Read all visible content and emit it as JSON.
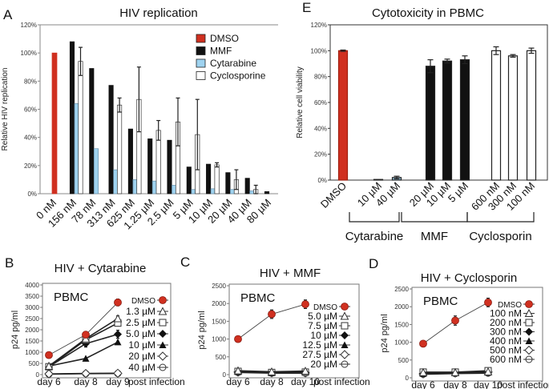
{
  "chart_data": [
    {
      "panel": "A",
      "type": "bar",
      "title": "HIV replication",
      "ylabel": "Relative HIV replication",
      "ylim": [
        0,
        120
      ],
      "yticks": [
        "0%",
        "20%",
        "40%",
        "60%",
        "80%",
        "100%",
        "120%"
      ],
      "categories": [
        "0 nM",
        "156 nM",
        "78 nM",
        "313 nM",
        "625 nM",
        "1.25 µM",
        "2.5 µM",
        "5 µM",
        "10 µM",
        "20 µM",
        "40 µM",
        "80 µM"
      ],
      "legend_position": "top-right",
      "series": [
        {
          "name": "DMSO",
          "color": "#d03020",
          "values": [
            100,
            null,
            null,
            null,
            null,
            null,
            null,
            null,
            null,
            null,
            null,
            null
          ],
          "errors": []
        },
        {
          "name": "MMF",
          "color": "#111111",
          "values": [
            null,
            108,
            89,
            77,
            46,
            39,
            38,
            19,
            21,
            15,
            11,
            1.5
          ],
          "errors": []
        },
        {
          "name": "Cytarabine",
          "color": "#9fd3f0",
          "values": [
            null,
            64,
            32,
            17,
            10,
            9,
            6,
            3,
            3.5,
            3,
            2,
            null
          ],
          "errors": []
        },
        {
          "name": "Cyclosporine",
          "color": "#ffffff",
          "values": [
            null,
            94,
            null,
            63,
            67,
            45,
            51,
            42,
            20.5,
            10,
            3,
            null
          ],
          "errors": [
            null,
            10,
            null,
            5,
            23,
            7,
            17,
            25,
            1.5,
            7,
            3,
            null
          ]
        }
      ]
    },
    {
      "panel": "E",
      "type": "bar",
      "title": "Cytotoxicity in PBMC",
      "ylabel": "Relative cell viability",
      "ylim": [
        0,
        120
      ],
      "yticks": [
        "0%",
        "20%",
        "40%",
        "60%",
        "80%",
        "100%",
        "120%"
      ],
      "categories": [
        "DMSO",
        "10 µM",
        "40 µM",
        "20 µM",
        "10 µM",
        "5 µM",
        "600 nM",
        "300 nM",
        "100 nM"
      ],
      "values": [
        100,
        0.5,
        2,
        88,
        92,
        93,
        100,
        96,
        100
      ],
      "errors": [
        0.5,
        0.2,
        1,
        5,
        1.5,
        3,
        3,
        1,
        2
      ],
      "bar_colors": [
        "#d03020",
        "#9fd3f0",
        "#9fd3f0",
        "#111111",
        "#111111",
        "#111111",
        "#ffffff",
        "#ffffff",
        "#ffffff"
      ],
      "groups": [
        {
          "label": "Cytarabine",
          "members": [
            1,
            2
          ]
        },
        {
          "label": "MMF",
          "members": [
            3,
            4,
            5
          ]
        },
        {
          "label": "Cyclosporin",
          "members": [
            6,
            7,
            8
          ]
        }
      ]
    },
    {
      "panel": "B",
      "type": "line",
      "title": "HIV + Cytarabine",
      "ylabel": "p24 pg/ml",
      "annotation": "PBMC",
      "xlabel": "post infection",
      "categories": [
        "day 6",
        "day 8",
        "day 9"
      ],
      "ylim": [
        0,
        4000
      ],
      "yticks": [
        "0",
        "500",
        "1000",
        "1500",
        "2000",
        "2500",
        "3000",
        "3500",
        "4000"
      ],
      "series": [
        {
          "name": "DMSO",
          "marker": "filled-circle-red",
          "values": [
            870,
            1780,
            3220
          ],
          "errors": [
            50,
            80,
            150
          ]
        },
        {
          "name": "1.3 µM",
          "marker": "open-triangle",
          "values": [
            380,
            1600,
            2500
          ],
          "errors": [
            30,
            100,
            120
          ]
        },
        {
          "name": "2.5 µM",
          "marker": "open-square",
          "values": [
            350,
            1550,
            2300
          ],
          "errors": []
        },
        {
          "name": "5.0 µM",
          "marker": "filled-diamond",
          "values": [
            350,
            1380,
            1800
          ],
          "errors": [
            30,
            150,
            180
          ]
        },
        {
          "name": "10 µM",
          "marker": "filled-triangle",
          "values": [
            380,
            720,
            1450
          ],
          "errors": []
        },
        {
          "name": "20 µM",
          "marker": "open-diamond",
          "values": [
            30,
            50,
            60
          ],
          "errors": []
        },
        {
          "name": "40 µM",
          "marker": "open-circle",
          "values": [
            20,
            40,
            50
          ],
          "errors": []
        }
      ]
    },
    {
      "panel": "C",
      "type": "line",
      "title": "HIV + MMF",
      "ylabel": "p24 pg/ml",
      "annotation": "PBMC",
      "xlabel": "post infection",
      "categories": [
        "day 6",
        "day 8",
        "day 10"
      ],
      "ylim": [
        0,
        2500
      ],
      "yticks": [
        "0",
        "500",
        "1000",
        "1500",
        "2000",
        "2500"
      ],
      "series": [
        {
          "name": "DMSO",
          "marker": "filled-circle-red",
          "values": [
            1000,
            1700,
            1980
          ],
          "errors": [
            30,
            120,
            120
          ]
        },
        {
          "name": "5.0 µM",
          "marker": "open-triangle",
          "values": [
            110,
            80,
            100
          ],
          "errors": []
        },
        {
          "name": "7.5 µM",
          "marker": "open-square",
          "values": [
            90,
            60,
            70
          ],
          "errors": []
        },
        {
          "name": "10 µM",
          "marker": "filled-diamond",
          "values": [
            80,
            60,
            70
          ],
          "errors": []
        },
        {
          "name": "12.5 µM",
          "marker": "filled-triangle",
          "values": [
            80,
            60,
            60
          ],
          "errors": []
        },
        {
          "name": "27.5 µM",
          "marker": "open-diamond",
          "values": [
            70,
            50,
            50
          ],
          "errors": []
        },
        {
          "name": "20 µM",
          "marker": "open-circle",
          "values": [
            60,
            40,
            40
          ],
          "errors": []
        }
      ]
    },
    {
      "panel": "D",
      "type": "line",
      "title": "HIV + Cyclosporin",
      "ylabel": "p24 pg/ml",
      "annotation": "PBMC",
      "xlabel": "post infection",
      "categories": [
        "day 6",
        "day 8",
        "day 10"
      ],
      "ylim": [
        0,
        2500
      ],
      "yticks": [
        "0",
        "500",
        "1000",
        "1500",
        "2000",
        "2500"
      ],
      "series": [
        {
          "name": "DMSO",
          "marker": "filled-circle-red",
          "values": [
            960,
            1610,
            2120
          ],
          "errors": [
            40,
            130,
            120
          ]
        },
        {
          "name": "100 nM",
          "marker": "open-triangle",
          "values": [
            150,
            150,
            170
          ],
          "errors": []
        },
        {
          "name": "200 nM",
          "marker": "open-square",
          "values": [
            160,
            160,
            200
          ],
          "errors": []
        },
        {
          "name": "300 nM",
          "marker": "filled-diamond",
          "values": [
            130,
            150,
            180
          ],
          "errors": []
        },
        {
          "name": "400 nM",
          "marker": "filled-triangle",
          "values": [
            120,
            140,
            190
          ],
          "errors": []
        },
        {
          "name": "500 nM",
          "marker": "open-diamond",
          "values": [
            110,
            130,
            160
          ],
          "errors": []
        },
        {
          "name": "600 nM",
          "marker": "open-circle",
          "values": [
            100,
            120,
            130
          ],
          "errors": []
        }
      ]
    }
  ]
}
